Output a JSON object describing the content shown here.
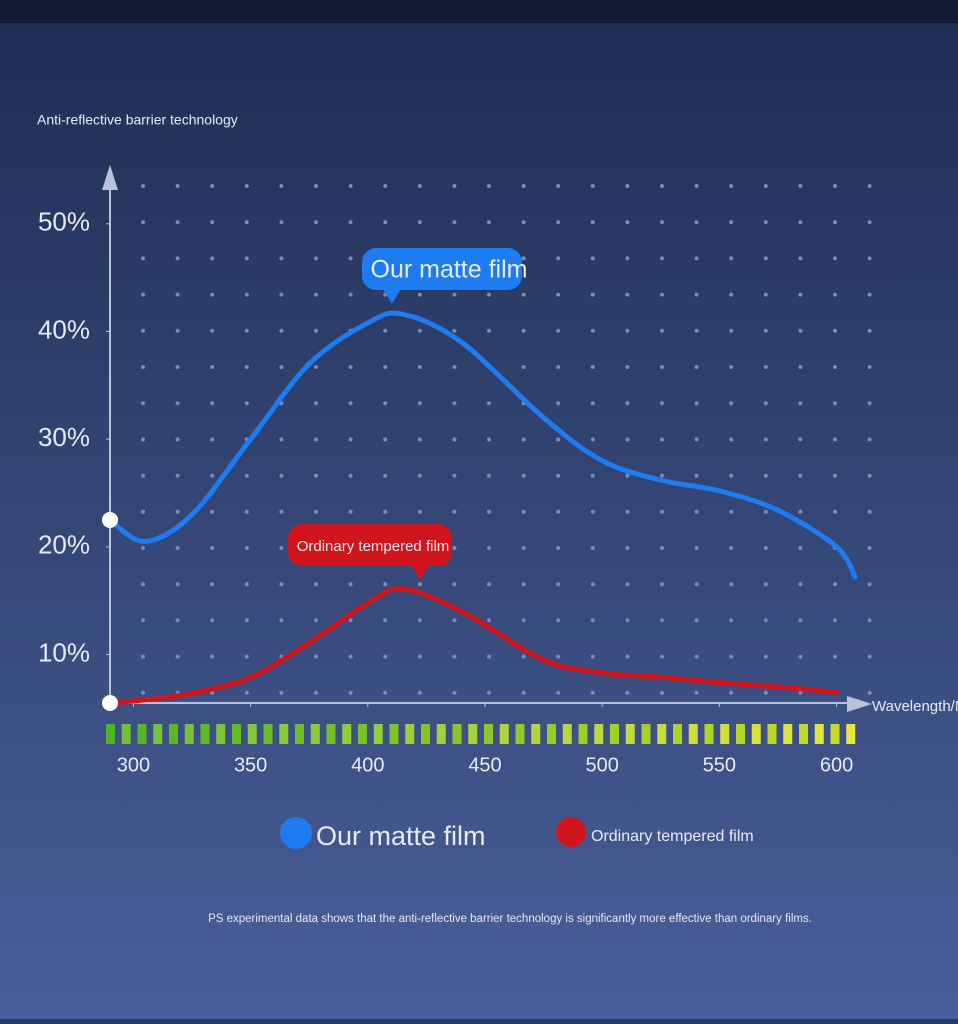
{
  "chart_data": {
    "type": "line",
    "title": "Anti-reflective barrier technology",
    "x_label": "Wavelength/N",
    "note": "PS experimental data shows that the anti-reflective barrier technology is significantly more effective than ordinary films.",
    "x": [
      290,
      305,
      325,
      350,
      375,
      400,
      415,
      440,
      475,
      500,
      525,
      550,
      575,
      600,
      608
    ],
    "series": [
      {
        "name": "Our matte film",
        "color": "#1f7bf0",
        "values": [
          22.5,
          20.5,
          23,
          30,
          37,
          40.8,
          41.6,
          39,
          32,
          28,
          26.2,
          25.2,
          23.4,
          20,
          17.2
        ]
      },
      {
        "name": "Ordinary tempered film",
        "color": "#d0151c",
        "values": [
          5.5,
          5.8,
          6.4,
          7.9,
          11.1,
          14.8,
          16.1,
          14,
          9.5,
          8.3,
          7.9,
          7.4,
          7.0,
          6.5,
          null
        ]
      }
    ],
    "xlim": [
      290,
      610
    ],
    "ylim": [
      5.5,
      55
    ],
    "xticks": [
      300,
      350,
      400,
      450,
      500,
      550,
      600
    ],
    "yticks": [
      {
        "value": 10,
        "label": "10%"
      },
      {
        "value": 20,
        "label": "20%"
      },
      {
        "value": 30,
        "label": "30%"
      },
      {
        "value": 40,
        "label": "40%"
      },
      {
        "value": 50,
        "label": "50%"
      }
    ]
  }
}
